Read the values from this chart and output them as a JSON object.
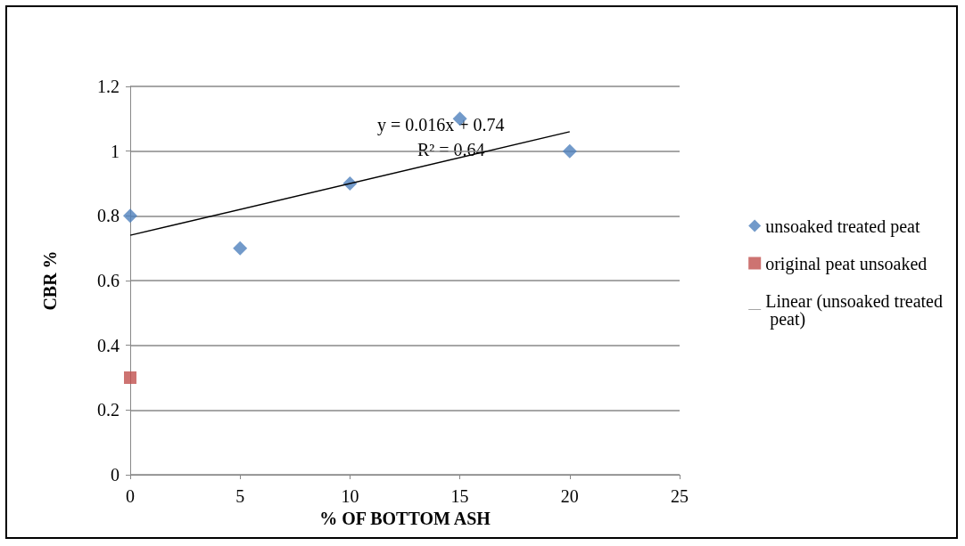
{
  "chart_data": {
    "type": "scatter",
    "xlabel": "% OF BOTTOM ASH",
    "ylabel": "CBR %",
    "xlim": [
      0,
      25
    ],
    "xticks": [
      0,
      5,
      10,
      15,
      20,
      25
    ],
    "ylim": [
      0,
      1.2
    ],
    "yticks": [
      0,
      0.2,
      0.4,
      0.6,
      0.8,
      1,
      1.2
    ],
    "grid": "y",
    "legend": "right",
    "annotations": [
      "y = 0.016x + 0.74",
      "R² = 0.64"
    ],
    "series": [
      {
        "name": "unsoaked treated peat",
        "color": "#4f81bd",
        "marker": "diamond",
        "x": [
          0,
          5,
          10,
          15,
          20
        ],
        "values": [
          0.8,
          0.7,
          0.9,
          1.1,
          1.0
        ]
      },
      {
        "name": "original peat unsoaked",
        "color": "#c0504d",
        "marker": "square",
        "x": [
          0
        ],
        "values": [
          0.3
        ]
      },
      {
        "name": "Linear (unsoaked treated peat)",
        "type": "line",
        "color": "#000000",
        "marker": "none",
        "x": [
          0,
          20
        ],
        "values": [
          0.74,
          1.06
        ]
      }
    ]
  }
}
